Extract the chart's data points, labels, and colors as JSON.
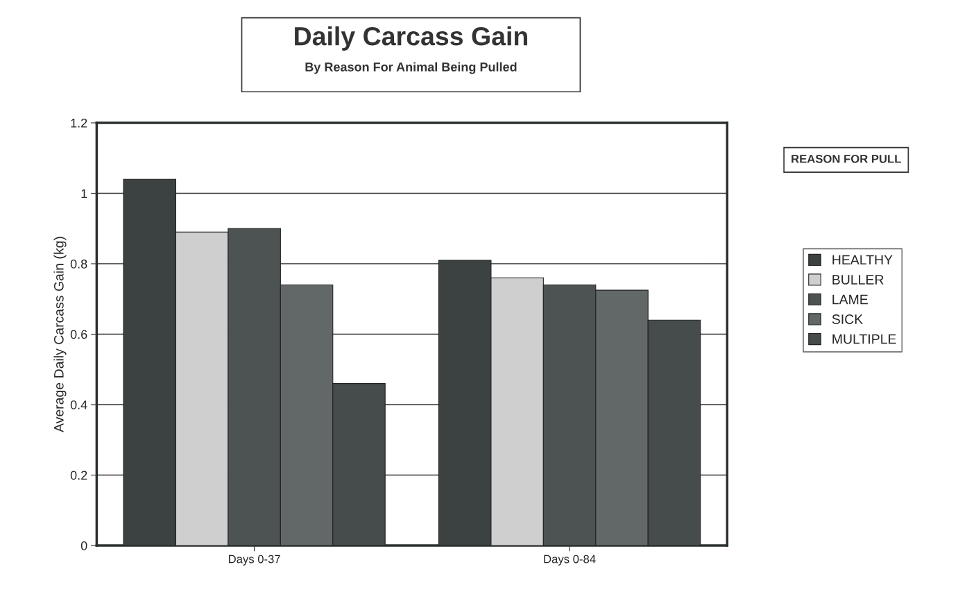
{
  "chart_data": {
    "type": "bar",
    "title": "Daily Carcass Gain",
    "subtitle": "By Reason For Animal Being Pulled",
    "ylabel": "Average Daily Carcass Gain (kg)",
    "legend_title": "REASON FOR PULL",
    "categories": [
      "Days 0-37",
      "Days 0-84"
    ],
    "series": [
      {
        "name": "HEALTHY",
        "color": "#3c4141",
        "values": [
          1.04,
          0.81
        ]
      },
      {
        "name": "BULLER",
        "color": "#cfcfcf",
        "values": [
          0.89,
          0.76
        ]
      },
      {
        "name": "LAME",
        "color": "#4d5252",
        "values": [
          0.9,
          0.74
        ]
      },
      {
        "name": "SICK",
        "color": "#626767",
        "values": [
          0.74,
          0.725
        ]
      },
      {
        "name": "MULTIPLE",
        "color": "#464b4b",
        "values": [
          0.46,
          0.64
        ]
      }
    ],
    "ylim": [
      0,
      1.2
    ],
    "yticks": [
      0,
      0.2,
      0.4,
      0.6,
      0.8,
      1,
      1.2
    ],
    "grid": "y",
    "legend": "right"
  }
}
